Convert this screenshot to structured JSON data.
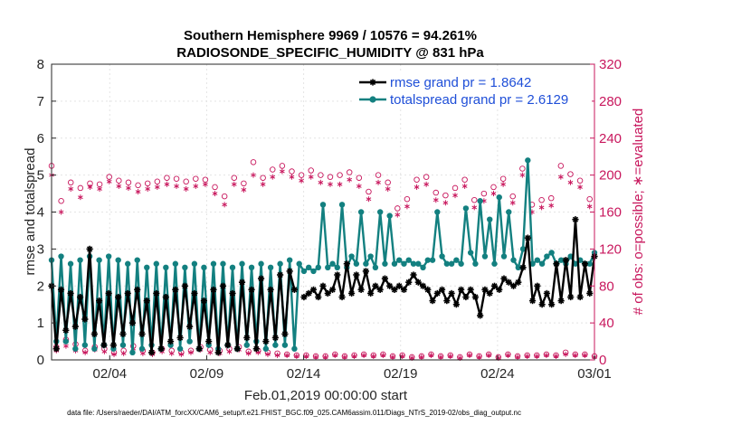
{
  "chart_data": {
    "type": "line",
    "title_line1": "Southern Hemisphere 9969 / 10576 = 94.261%",
    "title_line2": "RADIOSONDE_SPECIFIC_HUMIDITY @ 831 hPa",
    "xlabel": "Feb.01,2019 00:00:00 start",
    "ylabel": "rmse and totalspread",
    "ylabel_right": "# of obs: o=possible; ∗=evaluated",
    "ylim": [
      0,
      8
    ],
    "ylim_right": [
      0,
      320
    ],
    "xlim": [
      1,
      29
    ],
    "x_tick_values": [
      4,
      9,
      14,
      19,
      24,
      29
    ],
    "x_tick_labels": [
      "02/04",
      "02/09",
      "02/14",
      "02/19",
      "02/24",
      "03/01"
    ],
    "y_ticks": [
      "0",
      "1",
      "2",
      "3",
      "4",
      "5",
      "6",
      "7",
      "8"
    ],
    "y_right_ticks": [
      "0",
      "40",
      "80",
      "120",
      "160",
      "200",
      "240",
      "280",
      "320"
    ],
    "footer": "data file: /Users/raeder/DAI/ATM_forcXX/CAM6_setup/f.e21.FHIST_BGC.f09_025.CAM6assim.011/Diags_NTrS_2019-02/obs_diag_output.nc",
    "series": [
      {
        "name": "rmse grand pr = 1.8642",
        "legend": "rmse grand pr = 1.8642",
        "color": "#000000",
        "marker": "star",
        "values": [
          2.0,
          0.3,
          1.9,
          0.8,
          1.8,
          0.9,
          1.7,
          1.1,
          3.0,
          0.7,
          1.6,
          0.4,
          1.8,
          0.4,
          1.7,
          0.7,
          1.8,
          1.0,
          1.9,
          0.7,
          1.6,
          0.2,
          1.8,
          0.3,
          1.7,
          0.5,
          1.9,
          0.6,
          2.0,
          0.9,
          1.8,
          0.3,
          1.6,
          0.5,
          1.9,
          0.2,
          2.0,
          0.4,
          1.8,
          0.3,
          2.1,
          0.6,
          1.9,
          0.3,
          2.2,
          0.5,
          1.9,
          0.6,
          2.3,
          0.7,
          2.4,
          1.9,
          null,
          1.7,
          1.8,
          1.9,
          1.7,
          2.0,
          1.8,
          1.9,
          2.3,
          1.7,
          2.6,
          1.8,
          2.3,
          1.9,
          2.4,
          1.8,
          2.0,
          1.9,
          2.2,
          2.0,
          1.9,
          2.0,
          1.9,
          2.1,
          2.3,
          2.1,
          2.0,
          1.9,
          1.6,
          1.8,
          1.9,
          1.6,
          1.8,
          1.5,
          1.9,
          1.7,
          1.9,
          1.7,
          1.2,
          1.9,
          1.8,
          2.0,
          1.9,
          2.2,
          2.1,
          2.0,
          2.1,
          2.5,
          3.3,
          1.6,
          2.0,
          1.5,
          1.8,
          1.5,
          2.6,
          1.6,
          2.7,
          1.7,
          3.8,
          1.7,
          2.6,
          1.8,
          2.8
        ]
      },
      {
        "name": "totalspread grand pr = 2.6129",
        "legend": "totalspread grand pr = 2.6129",
        "color": "#138080",
        "marker": "dot",
        "values": [
          2.7,
          0.5,
          2.8,
          0.5,
          2.6,
          0.3,
          2.7,
          0.4,
          2.8,
          0.3,
          2.7,
          0.4,
          2.8,
          0.3,
          2.7,
          0.4,
          2.6,
          0.2,
          2.7,
          0.3,
          2.5,
          0.4,
          2.6,
          0.3,
          2.5,
          0.4,
          2.6,
          0.3,
          2.5,
          0.5,
          2.6,
          0.3,
          2.5,
          0.4,
          2.6,
          0.3,
          2.6,
          0.4,
          2.5,
          0.3,
          2.6,
          0.4,
          2.5,
          0.5,
          2.6,
          0.3,
          2.5,
          0.4,
          2.6,
          0.4,
          2.7,
          0.3,
          2.6,
          2.4,
          2.5,
          2.4,
          2.5,
          4.2,
          2.5,
          2.6,
          2.5,
          4.2,
          2.5,
          2.8,
          2.6,
          4.0,
          2.6,
          2.8,
          2.5,
          4.0,
          2.6,
          3.9,
          2.6,
          2.7,
          2.6,
          2.7,
          2.6,
          2.6,
          2.5,
          2.7,
          2.7,
          4.0,
          2.8,
          2.6,
          2.6,
          2.7,
          2.6,
          4.1,
          2.9,
          2.6,
          4.3,
          2.8,
          3.8,
          2.6,
          4.4,
          2.8,
          4.0,
          2.7,
          2.5,
          3.0,
          5.4,
          2.6,
          2.7,
          2.6,
          2.8,
          2.9,
          2.6,
          2.7,
          2.6,
          2.8,
          2.6,
          2.7,
          2.6,
          2.6,
          2.9
        ]
      },
      {
        "name": "possible",
        "color": "#c8175d",
        "marker": "circle",
        "axis": "right",
        "values": [
          210,
          14,
          172,
          22,
          192,
          17,
          186,
          10,
          191,
          14,
          190,
          12,
          198,
          8,
          194,
          10,
          192,
          15,
          189,
          10,
          191,
          8,
          193,
          12,
          197,
          10,
          196,
          8,
          193,
          10,
          196,
          14,
          195,
          11,
          187,
          10,
          177,
          12,
          197,
          14,
          191,
          9,
          214,
          10,
          197,
          8,
          206,
          7,
          210,
          6,
          204,
          5,
          200,
          5,
          205,
          4,
          200,
          4,
          198,
          6,
          200,
          4,
          203,
          5,
          197,
          6,
          182,
          5,
          200,
          6,
          192,
          4,
          164,
          5,
          174,
          3,
          195,
          4,
          198,
          6,
          181,
          4,
          178,
          5,
          186,
          3,
          195,
          6,
          173,
          4,
          180,
          6,
          187,
          3,
          196,
          6,
          177,
          4,
          207,
          5,
          168,
          5,
          173,
          6,
          175,
          5,
          210,
          8,
          201,
          6,
          194,
          6,
          174,
          4
        ]
      },
      {
        "name": "evaluated",
        "color": "#c8175d",
        "marker": "asterisk",
        "axis": "right",
        "values": [
          200,
          10,
          160,
          15,
          185,
          10,
          176,
          8,
          187,
          11,
          185,
          9,
          193,
          6,
          188,
          7,
          186,
          12,
          182,
          7,
          185,
          6,
          187,
          9,
          190,
          7,
          188,
          6,
          185,
          8,
          188,
          11,
          190,
          8,
          180,
          7,
          168,
          9,
          190,
          11,
          184,
          7,
          200,
          8,
          190,
          6,
          198,
          5,
          204,
          5,
          198,
          4,
          194,
          4,
          198,
          3,
          192,
          3,
          190,
          5,
          190,
          3,
          195,
          4,
          188,
          5,
          174,
          4,
          192,
          5,
          185,
          3,
          157,
          4,
          166,
          2,
          187,
          3,
          190,
          5,
          173,
          3,
          170,
          4,
          178,
          2,
          188,
          5,
          165,
          3,
          172,
          5,
          180,
          2,
          190,
          5,
          170,
          3,
          200,
          4,
          160,
          4,
          165,
          5,
          167,
          4,
          198,
          6,
          192,
          5,
          187,
          5,
          166,
          3
        ]
      }
    ]
  }
}
